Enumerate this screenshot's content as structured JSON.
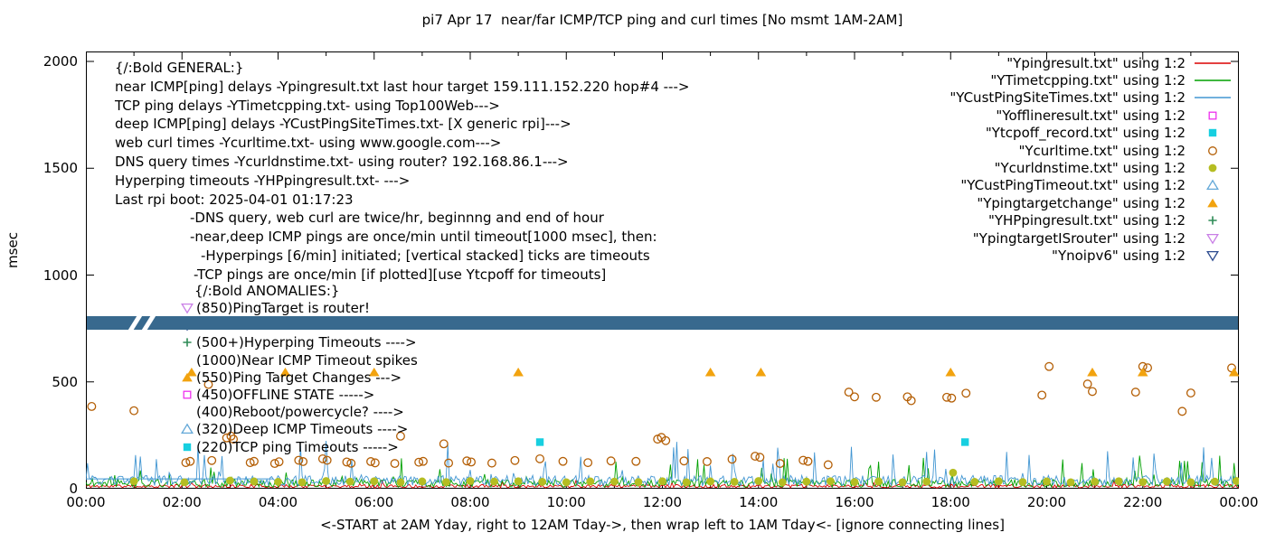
{
  "title": "pi7 Apr 17  near/far ICMP/TCP ping and curl times [No msmt 1AM-2AM]",
  "ylabel": "msec",
  "xlabel": "<-START at 2AM Yday, right to 12AM Tday->, then wrap left to 1AM Tday<- [ignore connecting lines]",
  "legend": [
    {
      "label": "\"Ypingresult.txt\" using 1:2",
      "sample": "line",
      "color": "#dc0000"
    },
    {
      "label": "\"YTimetcpping.txt\" using 1:2",
      "sample": "line",
      "color": "#00a000"
    },
    {
      "label": "\"YCustPingSiteTimes.txt\" using 1:2",
      "sample": "line",
      "color": "#4296d2"
    },
    {
      "label": "\"Yofflineresult.txt\" using 1:2",
      "sample": "square-open",
      "color": "#ee30ee"
    },
    {
      "label": "\"Ytcpoff_record.txt\" using 1:2",
      "sample": "square-filled",
      "color": "#17cfe0"
    },
    {
      "label": "\"Ycurltime.txt\" using 1:2",
      "sample": "circle-open",
      "color": "#b45f06"
    },
    {
      "label": "\"Ycurldnstime.txt\" using 1:2",
      "sample": "circle-filled",
      "color": "#b5bd22"
    },
    {
      "label": "\"YCustPingTimeout.txt\" using 1:2",
      "sample": "triangle-up-open",
      "color": "#63a8d8"
    },
    {
      "label": "\"Ypingtargetchange\" using 1:2",
      "sample": "triangle-up-filled",
      "color": "#f2a30f"
    },
    {
      "label": "\"YHPpingresult.txt\" using 1:2",
      "sample": "plus",
      "color": "#2e8b57"
    },
    {
      "label": "\"YpingtargetISrouter\" using 1:2",
      "sample": "triangle-down-open",
      "color": "#c97fe6"
    },
    {
      "label": "\"Ynoipv6\" using 1:2",
      "sample": "triangle-down-open",
      "color": "#2b4a8f"
    }
  ],
  "general_notes": [
    {
      "text": "{/:Bold GENERAL:}",
      "indent": 0
    },
    {
      "text": "near ICMP[ping] delays -Ypingresult.txt last hour target 159.111.152.220 hop#4 --->",
      "indent": 0
    },
    {
      "text": "TCP ping delays -YTimetcpping.txt- using Top100Web--->",
      "indent": 0
    },
    {
      "text": "deep ICMP[ping] delays -YCustPingSiteTimes.txt- [X generic rpi]--->",
      "indent": 0
    },
    {
      "text": "web curl times -Ycurltime.txt- using www.google.com--->",
      "indent": 0
    },
    {
      "text": "DNS query times -Ycurldnstime.txt- using router? 192.168.86.1--->",
      "indent": 0
    },
    {
      "text": "Hyperping timeouts -YHPpingresult.txt- --->",
      "indent": 0
    },
    {
      "text": "Last rpi boot: 2025-04-01 01:17:23",
      "indent": 0
    },
    {
      "text": "-DNS query, web curl are twice/hr, beginnng and end of hour",
      "indent": 83
    },
    {
      "text": "-near,deep ICMP pings are once/min until timeout[1000 msec], then:",
      "indent": 83
    },
    {
      "text": "-Hyperpings [6/min] initiated; [vertical stacked] ticks are timeouts",
      "indent": 95
    },
    {
      "text": "-TCP pings are once/min [if plotted][use Ytcpoff for timeouts]",
      "indent": 87
    }
  ],
  "anomalies": {
    "header": "{/:Bold ANOMALIES:}",
    "rows": [
      {
        "marker": "triangle-down-open",
        "color": "#c97fe6",
        "label": "(850)PingTarget is router!"
      },
      {
        "marker": "triangle-down-open",
        "color": "#2b4a8f",
        "label": ""
      },
      {
        "marker": "plus",
        "color": "#2e8b57",
        "label": "(500+)Hyperping Timeouts ---->"
      },
      {
        "marker": null,
        "color": "",
        "label": "(1000)Near ICMP Timeout spikes"
      },
      {
        "marker": "triangle-up-filled",
        "color": "#f2a30f",
        "label": "(550)Ping Target Changes --->"
      },
      {
        "marker": "square-open",
        "color": "#ee30ee",
        "label": "(450)OFFLINE STATE ----->"
      },
      {
        "marker": null,
        "color": "",
        "label": "(400)Reboot/powercycle? ---->"
      },
      {
        "marker": "triangle-up-open",
        "color": "#63a8d8",
        "label": "(320)Deep ICMP Timeouts ---->"
      },
      {
        "marker": "square-filled",
        "color": "#17cfe0",
        "label": "(220)TCP ping Timeouts ----->"
      }
    ]
  },
  "chart_data": {
    "type": "line",
    "x_axis": {
      "ticks": [
        "00:00",
        "02:00",
        "04:00",
        "06:00",
        "08:00",
        "10:00",
        "12:00",
        "14:00",
        "16:00",
        "18:00",
        "20:00",
        "22:00",
        "00:00"
      ],
      "range_hours": [
        0,
        24
      ]
    },
    "y_axis": {
      "label": "msec",
      "ticks": [
        0,
        500,
        1000,
        1500,
        2000
      ],
      "range": [
        0,
        2046
      ]
    },
    "no_measurement_window": "1AM-2AM",
    "series": [
      {
        "name": "Ypingresult.txt",
        "type": "line",
        "color": "#dc0000",
        "gen": {
          "seed": 11,
          "base": 12,
          "amp": 8,
          "spike_prob": 0.02,
          "spike_amp": 28
        }
      },
      {
        "name": "YTimetcpping.txt",
        "type": "line",
        "color": "#00a000",
        "gen": {
          "seed": 22,
          "base": 25,
          "amp": 18,
          "spike_prob": 0.05,
          "spike_amp": 120
        }
      },
      {
        "name": "YCustPingSiteTimes.txt",
        "type": "line",
        "color": "#4296d2",
        "gen": {
          "seed": 33,
          "base": 38,
          "amp": 24,
          "spike_prob": 0.06,
          "spike_amp": 170
        },
        "flat_segment": {
          "from": 0,
          "to": 3.9,
          "value": 46
        }
      },
      {
        "name": "Yofflineresult.txt",
        "type": "scatter",
        "marker": "square-open",
        "color": "#ee30ee",
        "points": []
      },
      {
        "name": "Ytcpoff_record.txt",
        "type": "scatter",
        "marker": "square-filled",
        "color": "#17cfe0",
        "points": [
          [
            9.45,
            218
          ],
          [
            18.3,
            218
          ]
        ]
      },
      {
        "name": "Ycurltime.txt",
        "type": "scatter",
        "marker": "circle-open",
        "color": "#b45f06",
        "points": [
          [
            0.12,
            385
          ],
          [
            1.0,
            365
          ],
          [
            2.08,
            122
          ],
          [
            2.17,
            128
          ],
          [
            2.55,
            488
          ],
          [
            2.62,
            132
          ],
          [
            2.93,
            238
          ],
          [
            3.02,
            246
          ],
          [
            3.07,
            232
          ],
          [
            3.42,
            122
          ],
          [
            3.5,
            128
          ],
          [
            3.93,
            118
          ],
          [
            4.02,
            126
          ],
          [
            4.43,
            133
          ],
          [
            4.52,
            127
          ],
          [
            4.93,
            140
          ],
          [
            5.02,
            133
          ],
          [
            5.43,
            125
          ],
          [
            5.52,
            119
          ],
          [
            5.93,
            127
          ],
          [
            6.02,
            121
          ],
          [
            6.43,
            118
          ],
          [
            6.55,
            246
          ],
          [
            6.93,
            124
          ],
          [
            7.02,
            128
          ],
          [
            7.45,
            210
          ],
          [
            7.55,
            120
          ],
          [
            7.93,
            130
          ],
          [
            8.02,
            125
          ],
          [
            8.45,
            120
          ],
          [
            8.93,
            132
          ],
          [
            9.45,
            140
          ],
          [
            9.93,
            128
          ],
          [
            10.45,
            122
          ],
          [
            10.93,
            130
          ],
          [
            11.45,
            128
          ],
          [
            11.9,
            232
          ],
          [
            11.98,
            240
          ],
          [
            12.07,
            225
          ],
          [
            12.45,
            130
          ],
          [
            12.93,
            127
          ],
          [
            13.45,
            138
          ],
          [
            13.93,
            152
          ],
          [
            14.03,
            147
          ],
          [
            14.45,
            118
          ],
          [
            14.93,
            133
          ],
          [
            15.03,
            128
          ],
          [
            15.45,
            112
          ],
          [
            15.88,
            452
          ],
          [
            16.0,
            430
          ],
          [
            16.45,
            428
          ],
          [
            17.1,
            430
          ],
          [
            17.18,
            412
          ],
          [
            17.92,
            428
          ],
          [
            18.02,
            424
          ],
          [
            18.32,
            447
          ],
          [
            19.9,
            438
          ],
          [
            20.05,
            572
          ],
          [
            20.85,
            490
          ],
          [
            20.95,
            455
          ],
          [
            21.85,
            452
          ],
          [
            22.0,
            572
          ],
          [
            22.1,
            566
          ],
          [
            22.82,
            362
          ],
          [
            23.0,
            448
          ],
          [
            23.85,
            565
          ]
        ]
      },
      {
        "name": "Ycurldnstime.txt",
        "type": "scatter",
        "marker": "circle-filled",
        "color": "#b5bd22",
        "points": [
          [
            1.0,
            35
          ],
          [
            2.05,
            30
          ],
          [
            3.0,
            38
          ],
          [
            3.5,
            34
          ],
          [
            4.0,
            32
          ],
          [
            4.5,
            30
          ],
          [
            5.0,
            36
          ],
          [
            5.5,
            33
          ],
          [
            6.0,
            35
          ],
          [
            6.55,
            30
          ],
          [
            7.0,
            34
          ],
          [
            7.5,
            31
          ],
          [
            8.0,
            36
          ],
          [
            8.5,
            33
          ],
          [
            9.0,
            35
          ],
          [
            9.5,
            32
          ],
          [
            10.0,
            30
          ],
          [
            10.5,
            34
          ],
          [
            11.0,
            33
          ],
          [
            11.5,
            31
          ],
          [
            12.0,
            35
          ],
          [
            12.5,
            30
          ],
          [
            13.0,
            34
          ],
          [
            13.5,
            32
          ],
          [
            14.0,
            36
          ],
          [
            14.5,
            30
          ],
          [
            15.0,
            33
          ],
          [
            15.5,
            35
          ],
          [
            16.0,
            31
          ],
          [
            16.5,
            34
          ],
          [
            17.0,
            30
          ],
          [
            17.5,
            33
          ],
          [
            18.05,
            75
          ],
          [
            18.5,
            32
          ],
          [
            19.0,
            35
          ],
          [
            19.5,
            31
          ],
          [
            20.0,
            34
          ],
          [
            20.5,
            30
          ],
          [
            21.0,
            33
          ],
          [
            21.5,
            35
          ],
          [
            22.0,
            31
          ],
          [
            22.5,
            34
          ],
          [
            23.0,
            30
          ],
          [
            23.5,
            33
          ],
          [
            23.95,
            36
          ]
        ]
      },
      {
        "name": "YCustPingTimeout.txt",
        "type": "scatter",
        "marker": "triangle-up-open",
        "color": "#63a8d8",
        "points": []
      },
      {
        "name": "Ypingtargetchange",
        "type": "scatter",
        "marker": "triangle-up-filled",
        "color": "#f2a30f",
        "points": [
          [
            2.2,
            545
          ],
          [
            4.15,
            545
          ],
          [
            6.0,
            545
          ],
          [
            9.0,
            545
          ],
          [
            13.0,
            545
          ],
          [
            14.05,
            545
          ],
          [
            18.0,
            545
          ],
          [
            20.95,
            545
          ],
          [
            22.0,
            545
          ],
          [
            23.9,
            545
          ]
        ]
      },
      {
        "name": "YHPpingresult.txt",
        "type": "scatter",
        "marker": "plus",
        "color": "#2e8b57",
        "points": []
      },
      {
        "name": "YpingtargetISrouter",
        "type": "scatter",
        "marker": "triangle-down-open",
        "color": "#c97fe6",
        "points": []
      },
      {
        "name": "Ynoipv6",
        "type": "band",
        "marker": "triangle-down-open",
        "color": "#2b4a8f",
        "band": {
          "value": 775,
          "thickness_msec": 60,
          "band_color": "#38698e",
          "gap_hours": [
            1.02,
            1.3
          ]
        }
      }
    ]
  }
}
